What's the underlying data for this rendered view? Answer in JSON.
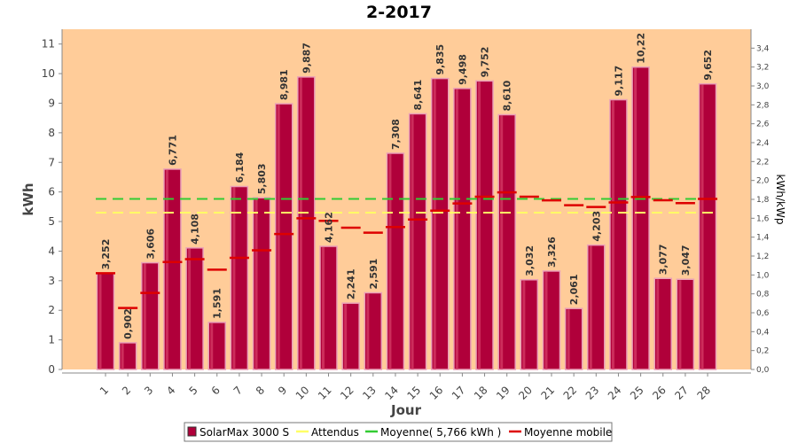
{
  "chart_data": {
    "type": "bar",
    "title": "2-2017",
    "xlabel": "Jour",
    "ylabel": "kWh",
    "ylabel_right": "kWh/kWp",
    "ylim": [
      0,
      11.5
    ],
    "y_ticks": [
      0,
      1,
      2,
      3,
      4,
      5,
      6,
      7,
      8,
      9,
      10,
      11
    ],
    "ylim_right": [
      0,
      3.6
    ],
    "y_ticks_right": [
      "0,0",
      "0,2",
      "0,4",
      "0,6",
      "0,8",
      "1,0",
      "1,2",
      "1,4",
      "1,6",
      "1,8",
      "2,0",
      "2,2",
      "2,4",
      "2,6",
      "2,8",
      "3,0",
      "3,2",
      "3,4"
    ],
    "categories": [
      "1",
      "2",
      "3",
      "4",
      "5",
      "6",
      "7",
      "8",
      "9",
      "10",
      "11",
      "12",
      "13",
      "14",
      "15",
      "16",
      "17",
      "18",
      "19",
      "20",
      "21",
      "22",
      "23",
      "24",
      "25",
      "26",
      "27",
      "28"
    ],
    "series": [
      {
        "name": "SolarMax 3000 S",
        "kind": "bar",
        "color": "#b0003a",
        "values": [
          3.252,
          0.902,
          3.606,
          6.771,
          4.108,
          1.591,
          6.184,
          5.803,
          8.981,
          9.887,
          4.162,
          2.241,
          2.591,
          7.308,
          8.641,
          9.835,
          9.498,
          9.752,
          8.61,
          3.032,
          3.326,
          2.061,
          4.203,
          9.117,
          10.22,
          3.077,
          3.047,
          9.652
        ],
        "labels": [
          "3,252",
          "0,902",
          "3,606",
          "6,771",
          "4,108",
          "1,591",
          "6,184",
          "5,803",
          "8,981",
          "9,887",
          "4,162",
          "2,241",
          "2,591",
          "7,308",
          "8,641",
          "9,835",
          "9,498",
          "9,752",
          "8,610",
          "3,032",
          "3,326",
          "2,061",
          "4,203",
          "9,117",
          "10,22",
          "3,077",
          "3,047",
          "9,652"
        ]
      },
      {
        "name": "Attendus",
        "kind": "dashed-line",
        "color": "#ffff66",
        "values": [
          5.3,
          5.3,
          5.3,
          5.3,
          5.3,
          5.3,
          5.3,
          5.3,
          5.3,
          5.3,
          5.3,
          5.3,
          5.3,
          5.3,
          5.3,
          5.3,
          5.3,
          5.3,
          5.3,
          5.3,
          5.3,
          5.3,
          5.3,
          5.3,
          5.3,
          5.3,
          5.3,
          5.3
        ]
      },
      {
        "name": "Moyenne( 5,766 kWh )",
        "kind": "dashed-line",
        "color": "#33cc33",
        "values": [
          5.766,
          5.766,
          5.766,
          5.766,
          5.766,
          5.766,
          5.766,
          5.766,
          5.766,
          5.766,
          5.766,
          5.766,
          5.766,
          5.766,
          5.766,
          5.766,
          5.766,
          5.766,
          5.766,
          5.766,
          5.766,
          5.766,
          5.766,
          5.766,
          5.766,
          5.766,
          5.766,
          5.766
        ]
      },
      {
        "name": "Moyenne mobile",
        "kind": "step-segments",
        "color": "#dd0000",
        "values": [
          3.252,
          2.077,
          2.587,
          3.633,
          3.728,
          3.372,
          3.774,
          4.028,
          4.578,
          5.109,
          5.023,
          4.791,
          4.622,
          4.814,
          5.069,
          5.367,
          5.61,
          5.84,
          5.986,
          5.838,
          5.718,
          5.552,
          5.493,
          5.644,
          5.827,
          5.721,
          5.622,
          5.766
        ]
      }
    ],
    "grid": false,
    "legend_position": "bottom-center",
    "colors": {
      "plot_background": "#ffcc99",
      "bar": "#b0003a",
      "bar_edge": "#eaa0b8",
      "axis": "#888888"
    }
  }
}
